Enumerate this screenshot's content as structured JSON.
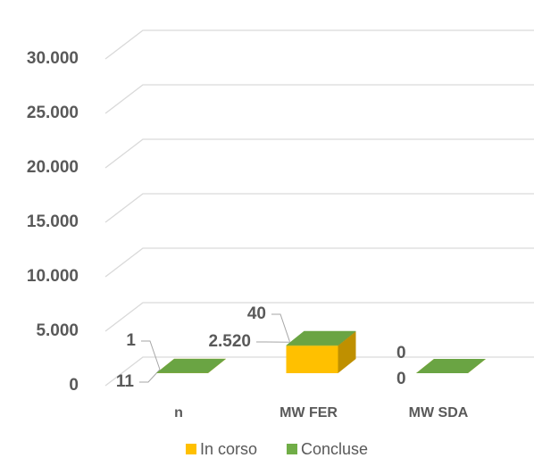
{
  "chart_data": {
    "type": "bar3d_stacked",
    "categories": [
      "n",
      "MW FER",
      "MW SDA"
    ],
    "series": [
      {
        "name": "In corso",
        "color": "#FFC000",
        "values": [
          11,
          2520,
          0
        ],
        "value_labels": [
          "11",
          "2.520",
          "0"
        ]
      },
      {
        "name": "Concluse",
        "color": "#70AD47",
        "values": [
          1,
          40,
          0
        ]
      }
    ],
    "ylim": [
      0,
      30000
    ],
    "yticks": [
      0,
      {
        "value": 5000,
        "label": "5.000"
      },
      {
        "value": 10000,
        "label": "10.000"
      },
      {
        "value": 15000,
        "label": "15.000"
      },
      {
        "value": 20000,
        "label": "20.000"
      },
      {
        "value": 25000,
        "label": "25.000"
      },
      {
        "value": 30000,
        "label": "30.000"
      }
    ],
    "grid": true,
    "legend": "bottom"
  }
}
